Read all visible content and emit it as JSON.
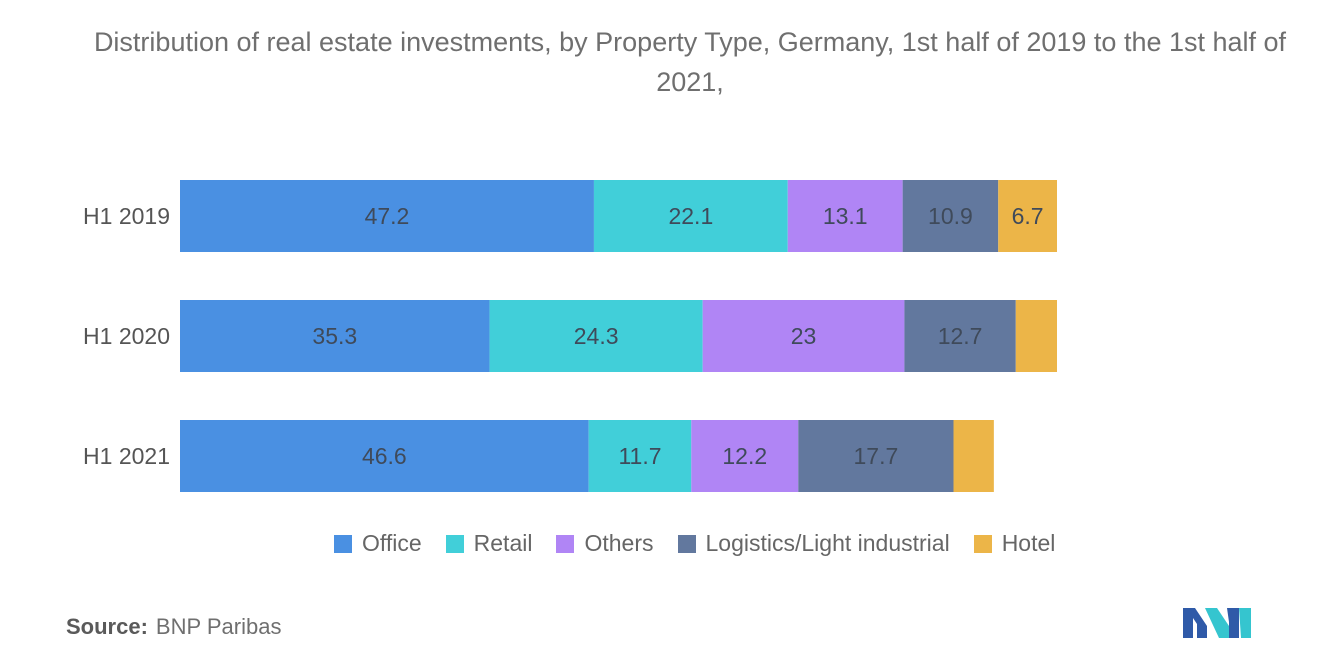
{
  "chart_data": {
    "type": "bar",
    "orientation": "horizontal",
    "stacked": true,
    "title": "Distribution of real estate investments, by Property Type, Germany, 1st half of 2019 to the 1st half of 2021,",
    "categories": [
      "H1 2019",
      "H1 2020",
      "H1 2021"
    ],
    "series": [
      {
        "name": "Office",
        "color": "#4a90e2",
        "values": [
          47.2,
          35.3,
          46.6
        ],
        "labels": [
          "47.2",
          "35.3",
          "46.6"
        ]
      },
      {
        "name": "Retail",
        "color": "#41cfd9",
        "values": [
          22.1,
          24.3,
          11.7
        ],
        "labels": [
          "22.1",
          "24.3",
          "11.7"
        ]
      },
      {
        "name": "Others",
        "color": "#b085f5",
        "values": [
          13.1,
          23,
          12.2
        ],
        "labels": [
          "13.1",
          "23",
          "12.2"
        ]
      },
      {
        "name": "Logistics/Light industrial",
        "color": "#62789e",
        "values": [
          10.9,
          12.7,
          17.7
        ],
        "labels": [
          "10.9",
          "12.7",
          "17.7"
        ]
      },
      {
        "name": "Hotel",
        "color": "#ecb548",
        "values": [
          6.7,
          4.7,
          4.6
        ],
        "labels": [
          "6.7",
          "",
          ""
        ]
      }
    ],
    "legend_position": "bottom",
    "grid": false,
    "xlim": [
      0,
      100
    ]
  },
  "source": {
    "label": "Source:",
    "text": "BNP Paribas"
  },
  "logo": {
    "icon": "mordor-intelligence-logo",
    "colors": [
      "#2f5aa8",
      "#35c5cf"
    ]
  }
}
